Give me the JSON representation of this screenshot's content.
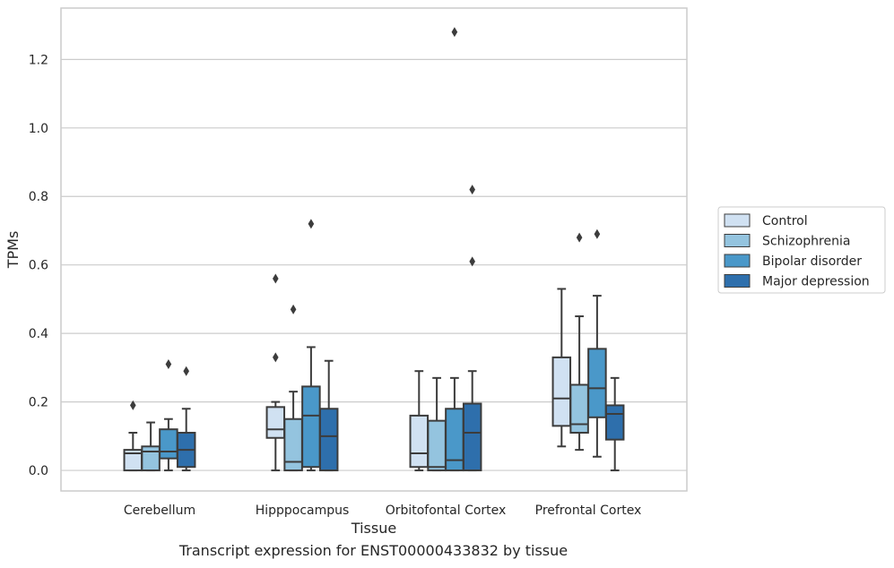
{
  "caption": "Transcript expression for ENST00000433832 by tissue",
  "chart_data": {
    "type": "box",
    "title": "",
    "xlabel": "Tissue",
    "ylabel": "TPMs",
    "categories": [
      "Cerebellum",
      "Hipppocampus",
      "Orbitofontal Cortex",
      "Prefrontal Cortex"
    ],
    "ylim": [
      -0.06,
      1.35
    ],
    "yticks": [
      0.0,
      0.2,
      0.4,
      0.6,
      0.8,
      1.0,
      1.2
    ],
    "ytick_labels": [
      "0.0",
      "0.2",
      "0.4",
      "0.6",
      "0.8",
      "1.0",
      "1.2"
    ],
    "grid": "horizontal",
    "legend_position": "right",
    "series": [
      {
        "name": "Control",
        "color": "#d0e1f2",
        "boxes": [
          {
            "whisker_low": 0.0,
            "q1": 0.0,
            "median": 0.05,
            "q3": 0.06,
            "whisker_high": 0.11,
            "outliers": [
              0.19
            ]
          },
          {
            "whisker_low": 0.0,
            "q1": 0.095,
            "median": 0.12,
            "q3": 0.185,
            "whisker_high": 0.2,
            "outliers": [
              0.33,
              0.56
            ]
          },
          {
            "whisker_low": 0.0,
            "q1": 0.01,
            "median": 0.05,
            "q3": 0.16,
            "whisker_high": 0.29,
            "outliers": []
          },
          {
            "whisker_low": 0.07,
            "q1": 0.13,
            "median": 0.21,
            "q3": 0.33,
            "whisker_high": 0.53,
            "outliers": []
          }
        ]
      },
      {
        "name": "Schizophrenia",
        "color": "#94c4df",
        "boxes": [
          {
            "whisker_low": 0.0,
            "q1": 0.0,
            "median": 0.055,
            "q3": 0.07,
            "whisker_high": 0.14,
            "outliers": []
          },
          {
            "whisker_low": 0.0,
            "q1": 0.0,
            "median": 0.025,
            "q3": 0.15,
            "whisker_high": 0.23,
            "outliers": [
              0.47
            ]
          },
          {
            "whisker_low": 0.0,
            "q1": 0.0,
            "median": 0.01,
            "q3": 0.145,
            "whisker_high": 0.27,
            "outliers": []
          },
          {
            "whisker_low": 0.06,
            "q1": 0.11,
            "median": 0.135,
            "q3": 0.25,
            "whisker_high": 0.45,
            "outliers": [
              0.68
            ]
          }
        ]
      },
      {
        "name": "Bipolar disorder",
        "color": "#4a98c9",
        "boxes": [
          {
            "whisker_low": 0.0,
            "q1": 0.035,
            "median": 0.055,
            "q3": 0.12,
            "whisker_high": 0.15,
            "outliers": [
              0.31
            ]
          },
          {
            "whisker_low": 0.0,
            "q1": 0.01,
            "median": 0.16,
            "q3": 0.245,
            "whisker_high": 0.36,
            "outliers": [
              0.72
            ]
          },
          {
            "whisker_low": 0.0,
            "q1": 0.0,
            "median": 0.03,
            "q3": 0.18,
            "whisker_high": 0.27,
            "outliers": [
              1.28
            ]
          },
          {
            "whisker_low": 0.04,
            "q1": 0.155,
            "median": 0.24,
            "q3": 0.355,
            "whisker_high": 0.51,
            "outliers": [
              0.69
            ]
          }
        ]
      },
      {
        "name": "Major depression",
        "color": "#2e6fac",
        "boxes": [
          {
            "whisker_low": 0.0,
            "q1": 0.01,
            "median": 0.06,
            "q3": 0.11,
            "whisker_high": 0.18,
            "outliers": [
              0.29
            ]
          },
          {
            "whisker_low": 0.0,
            "q1": 0.0,
            "median": 0.1,
            "q3": 0.18,
            "whisker_high": 0.32,
            "outliers": []
          },
          {
            "whisker_low": 0.0,
            "q1": 0.0,
            "median": 0.11,
            "q3": 0.195,
            "whisker_high": 0.29,
            "outliers": [
              0.61,
              0.82
            ]
          },
          {
            "whisker_low": 0.0,
            "q1": 0.09,
            "median": 0.165,
            "q3": 0.19,
            "whisker_high": 0.27,
            "outliers": []
          }
        ]
      }
    ]
  }
}
